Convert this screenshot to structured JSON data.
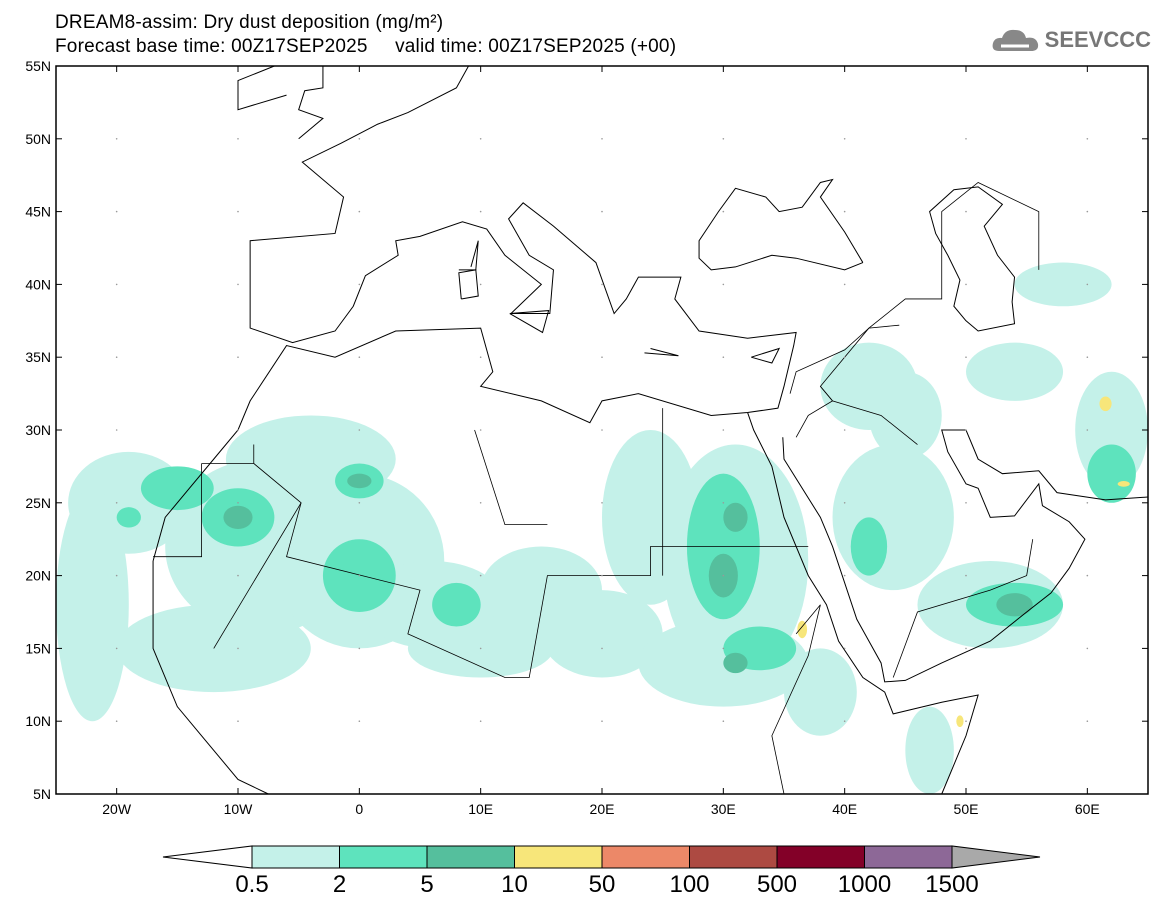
{
  "header": {
    "title": "DREAM8-assim: Dry dust deposition (mg/m²)",
    "base_time": "Forecast base time: 00Z17SEP2025",
    "valid_time": "valid time: 00Z17SEP2025 (+00)",
    "logo_text": "SEEVCCC",
    "logo_icon": "cloud-icon"
  },
  "map": {
    "lon_range": [
      -25,
      65
    ],
    "lat_range": [
      5,
      55
    ],
    "lat_labels": [
      "55N",
      "50N",
      "45N",
      "40N",
      "35N",
      "30N",
      "25N",
      "20N",
      "15N",
      "10N",
      "5N"
    ],
    "lat_values": [
      55,
      50,
      45,
      40,
      35,
      30,
      25,
      20,
      15,
      10,
      5
    ],
    "lon_labels": [
      "20W",
      "10W",
      "0",
      "10E",
      "20E",
      "30E",
      "40E",
      "50E",
      "60E"
    ],
    "lon_values": [
      -20,
      -10,
      0,
      10,
      20,
      30,
      40,
      50,
      60
    ]
  },
  "colorbar": {
    "labels": [
      "0.5",
      "2",
      "5",
      "10",
      "50",
      "100",
      "500",
      "1000",
      "1500"
    ],
    "colors": [
      "#c4f1e9",
      "#5ee3bd",
      "#55bf9d",
      "#f7e67a",
      "#ec8868",
      "#ad4a42",
      "#830028",
      "#8d6897"
    ],
    "under_color": "#ffffff",
    "over_color": "#a9a9a9"
  }
}
